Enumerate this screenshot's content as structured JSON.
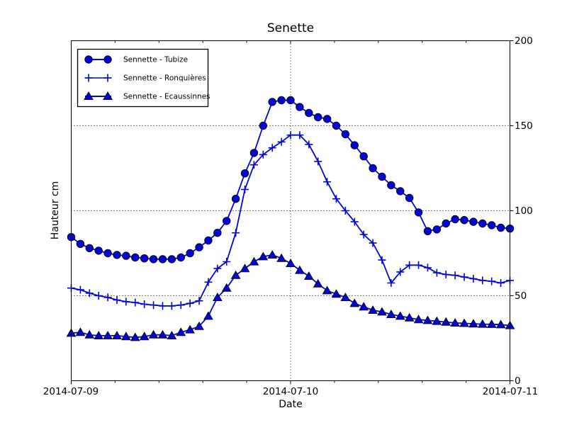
{
  "chart_data": {
    "type": "line",
    "title": "Senette",
    "xlabel": "Date",
    "ylabel": "Hauteur cm",
    "ylim": [
      0,
      200
    ],
    "yticks": [
      0,
      50,
      100,
      150,
      200
    ],
    "ygrid_values": [
      50,
      100,
      150
    ],
    "x_ticklabels": [
      "2014-07-09",
      "2014-07-10",
      "2014-07-11"
    ],
    "x_tick_hours": [
      0,
      24,
      48
    ],
    "x_minor_tick_hours": [
      4.8,
      9.6,
      14.4,
      19.2,
      28.8,
      33.6,
      38.4,
      43.2
    ],
    "x_gridline_hours": [
      24
    ],
    "xlim_hours": [
      0,
      48
    ],
    "x_interval_hours": 1,
    "grid_on": true,
    "legend_position": "upper-left",
    "line_color": "#0505d2",
    "marker_edge_color": "#000030",
    "series": [
      {
        "name": "Sennette - Tubize",
        "marker": "circle",
        "values": [
          84.5,
          80.5,
          78,
          76.5,
          75,
          74,
          73.5,
          72.5,
          72,
          71.5,
          71.5,
          71.5,
          72.5,
          75,
          78.5,
          82.5,
          87,
          94,
          107,
          122,
          134,
          150,
          164,
          165,
          165,
          161,
          157.5,
          155,
          154,
          150,
          145,
          138.5,
          132,
          125,
          120,
          115,
          111.5,
          107.5,
          99,
          88,
          89,
          92.5,
          95,
          94.5,
          93.5,
          92.5,
          91.5,
          90,
          89.5
        ]
      },
      {
        "name": "Sennette - Ronquières",
        "marker": "plus",
        "values": [
          54.5,
          53.5,
          51.5,
          50,
          49,
          47.5,
          46.5,
          46,
          45,
          44.5,
          44,
          44,
          44.5,
          45.5,
          47,
          58,
          66,
          70,
          87,
          112.5,
          127,
          133,
          137,
          140.5,
          144.5,
          144.5,
          139,
          129,
          117,
          107,
          100,
          93.5,
          86,
          81,
          71,
          57.5,
          64,
          68,
          68,
          66.5,
          63.5,
          62.5,
          62,
          61,
          60,
          59,
          58.5,
          57.5,
          59
        ]
      },
      {
        "name": "Sennette - Ecaussinnes",
        "marker": "triangle",
        "values": [
          28,
          28.5,
          27,
          26.5,
          26.5,
          26.5,
          26,
          25.5,
          26,
          27,
          27,
          26.5,
          28.5,
          30,
          32,
          38,
          49,
          54.5,
          62,
          66,
          70,
          73,
          74,
          72,
          69,
          65,
          61.5,
          57,
          53,
          51,
          49,
          45.5,
          43.5,
          41.5,
          40.5,
          39,
          38,
          37,
          36,
          35.5,
          35,
          34.5,
          34,
          33.8,
          33.5,
          33.3,
          33.2,
          33,
          32.5
        ]
      }
    ]
  }
}
